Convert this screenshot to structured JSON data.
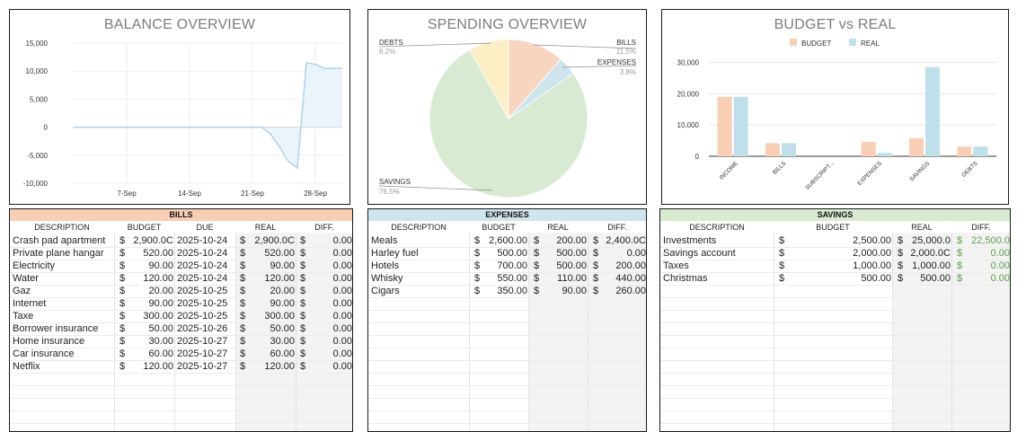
{
  "balance_chart": {
    "title": "BALANCE OVERVIEW",
    "y_ticks": [
      "15,000",
      "10,000",
      "5,000",
      "0",
      "-5,000",
      "-10,000"
    ],
    "x_ticks": [
      "7-Sep",
      "14-Sep",
      "21-Sep",
      "28-Sep"
    ],
    "line_color": "#aed3e6",
    "fill_color": "#eaf4fa"
  },
  "spending_chart": {
    "title": "SPENDING OVERVIEW",
    "labels": [
      {
        "name": "DEBTS",
        "pct": "8.2%"
      },
      {
        "name": "BILLS",
        "pct": "11.5%"
      },
      {
        "name": "EXPENSES",
        "pct": "3.8%"
      },
      {
        "name": "SAVINGS",
        "pct": "76.5%"
      }
    ]
  },
  "budget_chart": {
    "title": "BUDGET vs REAL",
    "legend": [
      "BUDGET",
      "REAL"
    ],
    "y_ticks": [
      "30,000",
      "20,000",
      "10,000",
      "0"
    ],
    "colors": {
      "budget": "#f8cfb4",
      "real": "#bfe0ea"
    }
  },
  "chart_data": [
    {
      "type": "area",
      "title": "BALANCE OVERVIEW",
      "ylim": [
        -10000,
        15000
      ],
      "x_ticks": [
        "7-Sep",
        "14-Sep",
        "21-Sep",
        "28-Sep"
      ],
      "points": [
        {
          "x": "2025-09-01",
          "y": 0
        },
        {
          "x": "2025-09-22",
          "y": 0
        },
        {
          "x": "2025-09-23",
          "y": -1200
        },
        {
          "x": "2025-09-24",
          "y": -3500
        },
        {
          "x": "2025-09-25",
          "y": -6100
        },
        {
          "x": "2025-09-26",
          "y": -7300
        },
        {
          "x": "2025-09-27",
          "y": 11500
        },
        {
          "x": "2025-09-28",
          "y": 11200
        },
        {
          "x": "2025-09-29",
          "y": 10500
        },
        {
          "x": "2025-10-01",
          "y": 10500
        }
      ]
    },
    {
      "type": "pie",
      "title": "SPENDING OVERVIEW",
      "slices": [
        {
          "label": "BILLS",
          "value": 11.5,
          "color": "#f8d5c0"
        },
        {
          "label": "EXPENSES",
          "value": 3.8,
          "color": "#cfe5ee"
        },
        {
          "label": "SAVINGS",
          "value": 76.5,
          "color": "#d8ebd2"
        },
        {
          "label": "DEBTS",
          "value": 8.2,
          "color": "#fcefc6"
        }
      ]
    },
    {
      "type": "bar",
      "title": "BUDGET vs REAL",
      "categories": [
        "INCOME",
        "BILLS",
        "SUBSCRIPT...",
        "EXPENSES",
        "SAVINGS",
        "DEBTS"
      ],
      "series": [
        {
          "name": "BUDGET",
          "values": [
            19000,
            4200,
            0,
            4600,
            5800,
            3100
          ]
        },
        {
          "name": "REAL",
          "values": [
            19000,
            4200,
            0,
            1100,
            28500,
            3100
          ]
        }
      ],
      "ylim": [
        0,
        33000
      ]
    }
  ],
  "bills": {
    "title": "BILLS",
    "color": "#f8cfb4",
    "headers": [
      "DESCRIPTION",
      "BUDGET",
      "DUE",
      "REAL",
      "DIFF."
    ],
    "rows": [
      {
        "desc": "Crash pad apartment",
        "budget": "2,900.0C",
        "due": "2025-10-24",
        "real": "2,900.0C",
        "diff": "0.00"
      },
      {
        "desc": "Private plane hangar",
        "budget": "520.00",
        "due": "2025-10-24",
        "real": "520.00",
        "diff": "0.00"
      },
      {
        "desc": "Electricity",
        "budget": "90.00",
        "due": "2025-10-24",
        "real": "90.00",
        "diff": "0.00"
      },
      {
        "desc": "Water",
        "budget": "120.00",
        "due": "2025-10-24",
        "real": "120.00",
        "diff": "0.00"
      },
      {
        "desc": "Gaz",
        "budget": "20.00",
        "due": "2025-10-25",
        "real": "20.00",
        "diff": "0.00"
      },
      {
        "desc": "Internet",
        "budget": "90.00",
        "due": "2025-10-25",
        "real": "90.00",
        "diff": "0.00"
      },
      {
        "desc": "Taxe",
        "budget": "300.00",
        "due": "2025-10-25",
        "real": "300.00",
        "diff": "0.00"
      },
      {
        "desc": "Borrower insurance",
        "budget": "50.00",
        "due": "2025-10-26",
        "real": "50.00",
        "diff": "0.00"
      },
      {
        "desc": "Home insurance",
        "budget": "30.00",
        "due": "2025-10-27",
        "real": "30.00",
        "diff": "0.00"
      },
      {
        "desc": "Car insurance",
        "budget": "60.00",
        "due": "2025-10-27",
        "real": "60.00",
        "diff": "0.00"
      },
      {
        "desc": "Netflix",
        "budget": "120.00",
        "due": "2025-10-27",
        "real": "120.00",
        "diff": "0.00"
      }
    ]
  },
  "expenses": {
    "title": "EXPENSES",
    "color": "#cfe5ee",
    "headers": [
      "DESCRIPTION",
      "BUDGET",
      "REAL",
      "DIFF."
    ],
    "rows": [
      {
        "desc": "Meals",
        "budget": "2,600.00",
        "real": "200.00",
        "diff": "2,400.0C"
      },
      {
        "desc": "Harley fuel",
        "budget": "500.00",
        "real": "500.00",
        "diff": "0.00"
      },
      {
        "desc": "Hotels",
        "budget": "700.00",
        "real": "500.00",
        "diff": "200.00"
      },
      {
        "desc": "Whisky",
        "budget": "550.00",
        "real": "110.00",
        "diff": "440.00"
      },
      {
        "desc": "Cigars",
        "budget": "350.00",
        "real": "90.00",
        "diff": "260.00"
      }
    ]
  },
  "savings": {
    "title": "SAVINGS",
    "color": "#d8ebd2",
    "headers": [
      "DESCRIPTION",
      "BUDGET",
      "REAL",
      "DIFF."
    ],
    "rows": [
      {
        "desc": "Investments",
        "budget": "2,500.00",
        "real": "25,000.0",
        "diff": "22,500.0"
      },
      {
        "desc": "Savings account",
        "budget": "2,000.00",
        "real": "2,000.0C",
        "diff": "0.00"
      },
      {
        "desc": "Taxes",
        "budget": "1,000.00",
        "real": "1,000.00",
        "diff": "0.00"
      },
      {
        "desc": "Christmas",
        "budget": "500.00",
        "real": "500.00",
        "diff": "0.00"
      }
    ]
  },
  "currency": "$"
}
